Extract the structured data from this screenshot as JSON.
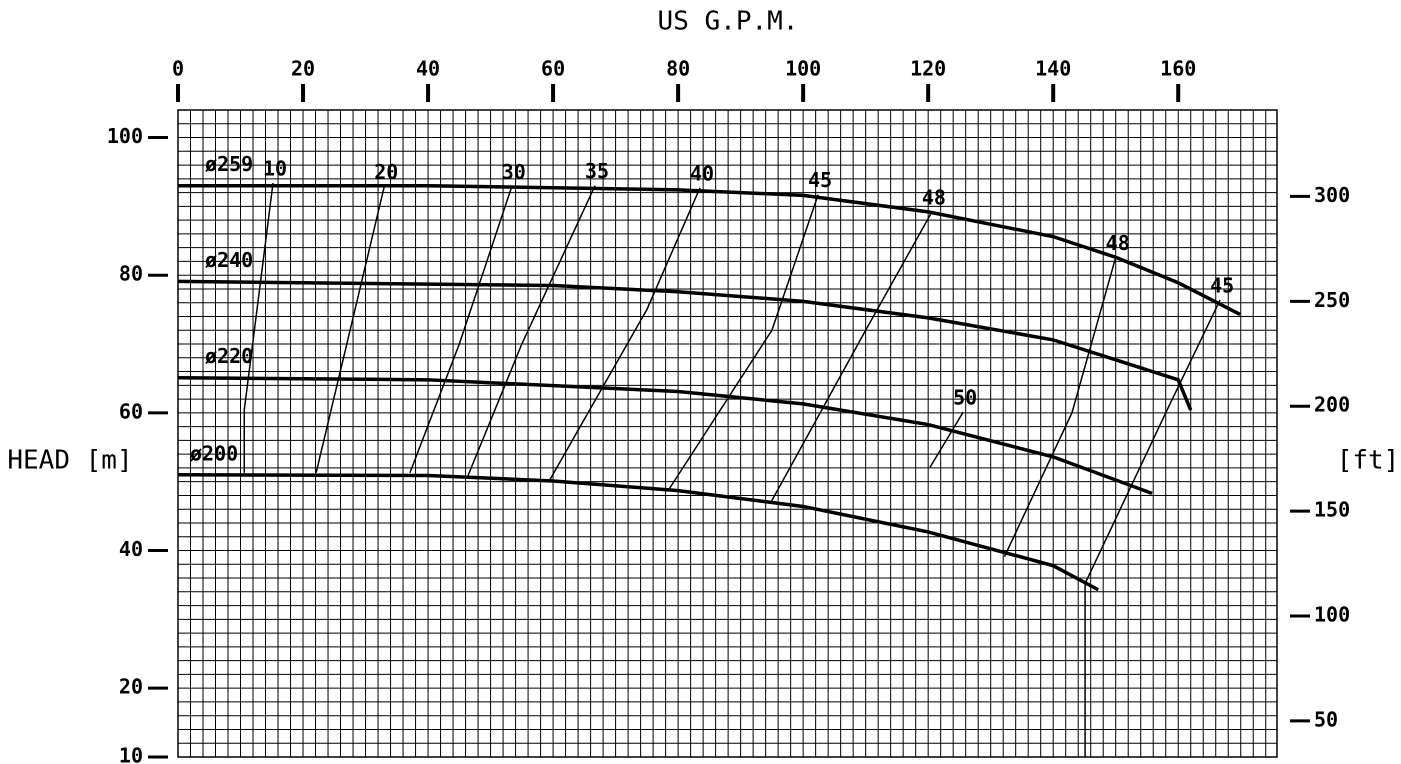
{
  "chart_data": {
    "type": "line",
    "title": "US G.P.M.",
    "y_label": "HEAD [m]",
    "y2_label": "[ft]",
    "color": "#000000",
    "grid": {
      "x_step": 2,
      "y_step": 2
    },
    "xlim": [
      0,
      175.8
    ],
    "xticks": [
      0,
      20,
      40,
      60,
      80,
      100,
      120,
      140,
      160
    ],
    "ylim": [
      10,
      104
    ],
    "yticks": [
      10,
      20,
      40,
      60,
      80,
      100
    ],
    "y2lim": [
      32.8,
      341.2
    ],
    "y2ticks": [
      50,
      100,
      150,
      200,
      250,
      300
    ],
    "series": [
      {
        "name": "ø259",
        "x": [
          0,
          40,
          80,
          100,
          120,
          140,
          150,
          160,
          169.9
        ],
        "values": [
          93,
          93,
          92.4,
          91.6,
          89.2,
          85.6,
          82.6,
          78.9,
          74.3
        ]
      },
      {
        "name": "ø240",
        "x": [
          0,
          60,
          80,
          100,
          120,
          140,
          160,
          162
        ],
        "values": [
          79.1,
          78.5,
          77.6,
          76.2,
          73.8,
          70.6,
          64.8,
          60.4
        ]
      },
      {
        "name": "ø220",
        "x": [
          0,
          40,
          80,
          100,
          120,
          140,
          155.8
        ],
        "values": [
          65.1,
          64.8,
          63.1,
          61.3,
          58.3,
          53.6,
          48.3
        ]
      },
      {
        "name": "ø200",
        "x": [
          0,
          40,
          60,
          80,
          100,
          120,
          140,
          147.2
        ],
        "values": [
          51,
          50.9,
          50.1,
          48.7,
          46.4,
          42.7,
          37.8,
          34.3
        ]
      }
    ],
    "efficiency": [
      {
        "name": "10",
        "x": [
          10.6,
          10.6,
          15.2
        ],
        "values": [
          51.3,
          60.4,
          93.4
        ]
      },
      {
        "name": "20",
        "x": [
          22.1,
          27,
          33
        ],
        "values": [
          51.3,
          70,
          92.9
        ]
      },
      {
        "name": "30",
        "x": [
          37.1,
          45,
          53.4
        ],
        "values": [
          51.3,
          70,
          92.9
        ]
      },
      {
        "name": "35",
        "x": [
          46.4,
          55,
          66.7
        ],
        "values": [
          50.9,
          70,
          93
        ]
      },
      {
        "name": "40",
        "x": [
          59.5,
          75,
          83.5
        ],
        "values": [
          50.3,
          75,
          92.7
        ]
      },
      {
        "name": "45",
        "x": [
          78.4,
          95,
          102.4
        ],
        "values": [
          48.7,
          72,
          91.7
        ]
      },
      {
        "name": "48",
        "x": [
          94.9,
          110,
          120.6
        ],
        "values": [
          47.1,
          72,
          89.2
        ]
      },
      {
        "name": "50",
        "x": [
          120.3,
          125.6
        ],
        "values": [
          52.1,
          60.1
        ]
      },
      {
        "name": "48",
        "x": [
          132.2,
          143,
          150
        ],
        "values": [
          39.1,
          60,
          82.6
        ]
      },
      {
        "name": "45",
        "x": [
          145.1,
          145.1,
          158,
          166.7
        ],
        "values": [
          10,
          35.2,
          60,
          76.4
        ]
      }
    ]
  }
}
